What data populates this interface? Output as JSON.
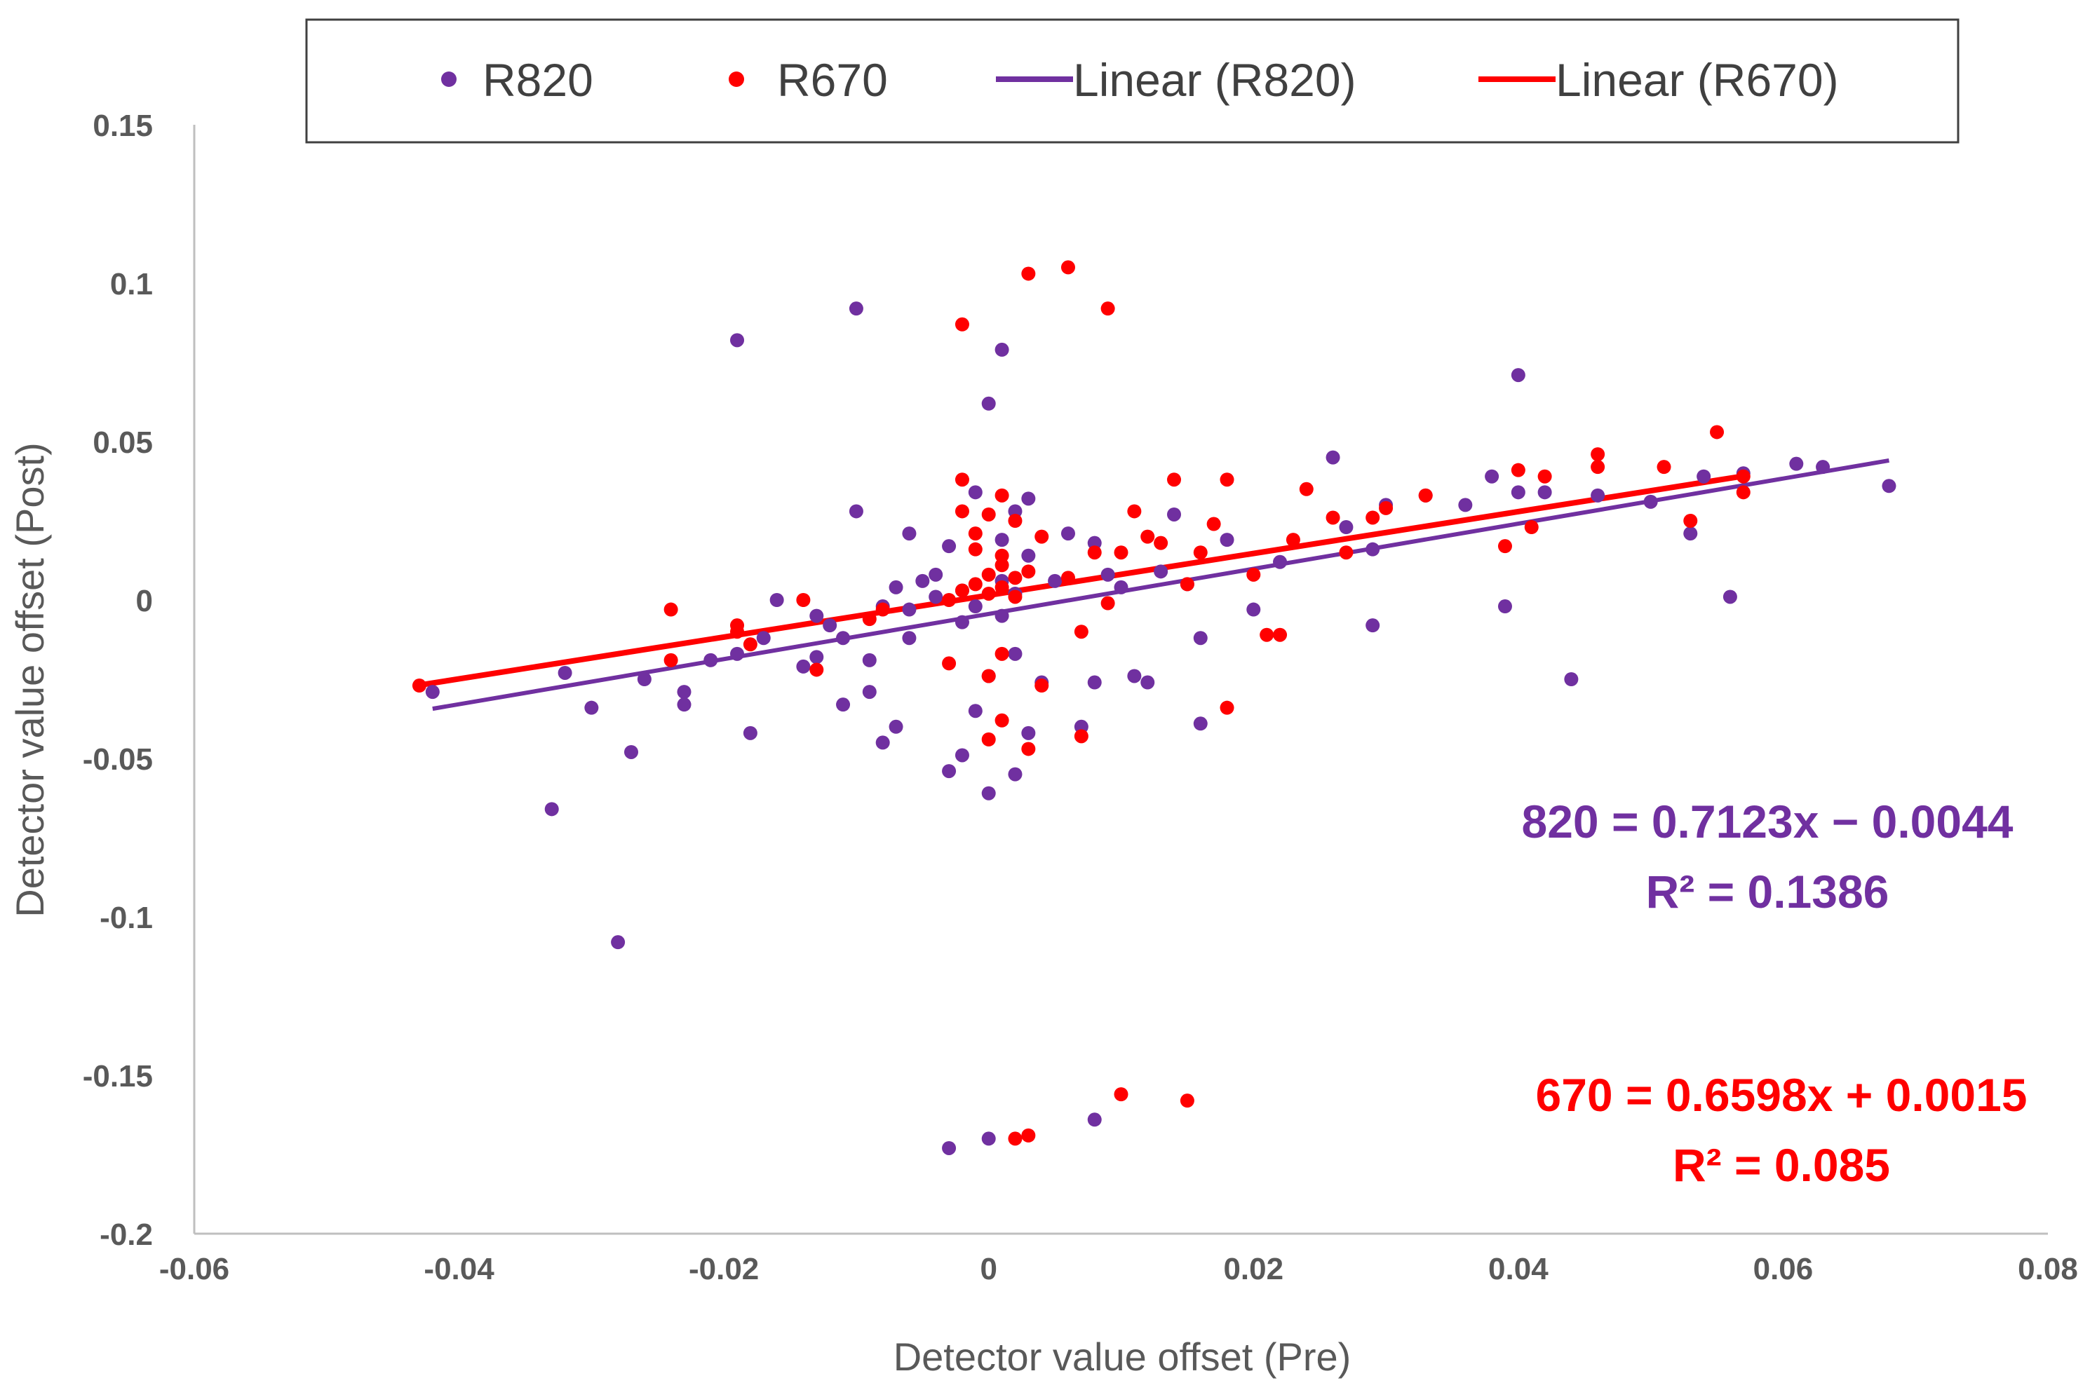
{
  "chart_data": {
    "type": "scatter",
    "title": "",
    "xlabel": "Detector value offset (Pre)",
    "ylabel": "Detector value offset (Post)",
    "xlim": [
      -0.06,
      0.08
    ],
    "ylim": [
      -0.2,
      0.15
    ],
    "x_ticks": [
      -0.06,
      -0.04,
      -0.02,
      0,
      0.02,
      0.04,
      0.06,
      0.08
    ],
    "x_tick_labels": [
      "-0.06",
      "-0.04",
      "-0.02",
      "0",
      "0.02",
      "0.04",
      "0.06",
      "0.08"
    ],
    "y_ticks": [
      0.15,
      0.1,
      0.05,
      0,
      -0.05,
      -0.1,
      -0.15,
      -0.2
    ],
    "y_tick_labels": [
      "0.15",
      "0.1",
      "0.05",
      "0",
      "-0.05",
      "-0.1",
      "-0.15",
      "-0.2"
    ],
    "legend_position": "top",
    "legend": [
      {
        "label": "R820",
        "kind": "marker",
        "color": "#7030A0"
      },
      {
        "label": "R670",
        "kind": "marker",
        "color": "#FF0000"
      },
      {
        "label": "Linear (R820)",
        "kind": "line",
        "color": "#7030A0"
      },
      {
        "label": "Linear (R670)",
        "kind": "line",
        "color": "#FF0000"
      }
    ],
    "series": [
      {
        "name": "R820",
        "color": "#7030A0",
        "points": [
          [
            -0.042,
            -0.029
          ],
          [
            -0.033,
            -0.066
          ],
          [
            -0.032,
            -0.023
          ],
          [
            -0.03,
            -0.034
          ],
          [
            -0.028,
            -0.108
          ],
          [
            -0.027,
            -0.048
          ],
          [
            -0.026,
            -0.025
          ],
          [
            -0.023,
            -0.029
          ],
          [
            -0.023,
            -0.033
          ],
          [
            -0.021,
            -0.019
          ],
          [
            -0.019,
            -0.017
          ],
          [
            -0.019,
            0.082
          ],
          [
            -0.018,
            -0.042
          ],
          [
            -0.017,
            -0.012
          ],
          [
            -0.016,
            0.0
          ],
          [
            -0.014,
            -0.021
          ],
          [
            -0.013,
            -0.018
          ],
          [
            -0.012,
            -0.008
          ],
          [
            -0.011,
            -0.033
          ],
          [
            -0.01,
            0.092
          ],
          [
            -0.01,
            0.028
          ],
          [
            -0.009,
            -0.019
          ],
          [
            -0.009,
            -0.029
          ],
          [
            -0.008,
            -0.045
          ],
          [
            -0.007,
            -0.04
          ],
          [
            -0.006,
            0.021
          ],
          [
            -0.006,
            -0.012
          ],
          [
            -0.005,
            0.006
          ],
          [
            -0.004,
            0.008
          ],
          [
            -0.003,
            -0.054
          ],
          [
            -0.003,
            0.017
          ],
          [
            -0.002,
            -0.049
          ],
          [
            -0.002,
            0.003
          ],
          [
            -0.001,
            -0.035
          ],
          [
            -0.001,
            0.034
          ],
          [
            0.0,
            -0.061
          ],
          [
            0.0,
            0.062
          ],
          [
            0.0,
            -0.024
          ],
          [
            0.001,
            0.079
          ],
          [
            0.001,
            -0.005
          ],
          [
            0.001,
            0.019
          ],
          [
            0.002,
            -0.055
          ],
          [
            0.002,
            0.028
          ],
          [
            0.002,
            -0.017
          ],
          [
            0.003,
            -0.042
          ],
          [
            0.003,
            0.032
          ],
          [
            0.003,
            0.014
          ],
          [
            0.004,
            -0.026
          ],
          [
            0.005,
            0.006
          ],
          [
            0.006,
            0.021
          ],
          [
            0.007,
            -0.04
          ],
          [
            0.008,
            -0.026
          ],
          [
            0.008,
            0.018
          ],
          [
            0.009,
            0.008
          ],
          [
            0.01,
            0.004
          ],
          [
            0.011,
            -0.024
          ],
          [
            0.012,
            -0.026
          ],
          [
            0.013,
            0.009
          ],
          [
            0.014,
            0.027
          ],
          [
            0.015,
            0.005
          ],
          [
            0.016,
            -0.012
          ],
          [
            0.016,
            -0.039
          ],
          [
            0.018,
            0.019
          ],
          [
            0.02,
            -0.003
          ],
          [
            0.022,
            0.012
          ],
          [
            0.026,
            0.045
          ],
          [
            0.027,
            0.023
          ],
          [
            0.029,
            -0.008
          ],
          [
            0.029,
            0.016
          ],
          [
            0.03,
            0.03
          ],
          [
            0.033,
            0.033
          ],
          [
            0.036,
            0.03
          ],
          [
            0.038,
            0.039
          ],
          [
            0.039,
            -0.002
          ],
          [
            0.04,
            0.071
          ],
          [
            0.04,
            0.034
          ],
          [
            0.042,
            0.034
          ],
          [
            0.044,
            -0.025
          ],
          [
            0.046,
            0.033
          ],
          [
            0.05,
            0.031
          ],
          [
            0.053,
            0.021
          ],
          [
            0.054,
            0.039
          ],
          [
            0.056,
            0.001
          ],
          [
            0.057,
            0.04
          ],
          [
            0.061,
            0.043
          ],
          [
            0.063,
            0.042
          ],
          [
            0.068,
            0.036
          ],
          [
            -0.003,
            -0.173
          ],
          [
            0.0,
            -0.17
          ],
          [
            0.008,
            -0.164
          ],
          [
            -0.013,
            -0.005
          ],
          [
            -0.011,
            -0.012
          ],
          [
            -0.008,
            -0.002
          ],
          [
            -0.007,
            0.004
          ],
          [
            -0.006,
            -0.003
          ],
          [
            -0.004,
            0.001
          ],
          [
            -0.002,
            -0.007
          ],
          [
            -0.001,
            -0.002
          ],
          [
            0.001,
            0.006
          ],
          [
            0.002,
            0.002
          ]
        ]
      },
      {
        "name": "R670",
        "color": "#FF0000",
        "points": [
          [
            -0.043,
            -0.027
          ],
          [
            -0.024,
            -0.003
          ],
          [
            -0.024,
            -0.019
          ],
          [
            -0.019,
            -0.008
          ],
          [
            -0.019,
            -0.01
          ],
          [
            -0.018,
            -0.014
          ],
          [
            -0.014,
            0.0
          ],
          [
            -0.013,
            -0.022
          ],
          [
            -0.009,
            -0.006
          ],
          [
            -0.008,
            -0.003
          ],
          [
            -0.003,
            -0.02
          ],
          [
            -0.002,
            0.087
          ],
          [
            -0.002,
            0.038
          ],
          [
            -0.002,
            0.028
          ],
          [
            -0.001,
            0.016
          ],
          [
            -0.001,
            0.021
          ],
          [
            0.0,
            -0.044
          ],
          [
            0.0,
            -0.024
          ],
          [
            0.0,
            0.027
          ],
          [
            0.001,
            -0.038
          ],
          [
            0.001,
            0.033
          ],
          [
            0.001,
            -0.017
          ],
          [
            0.002,
            0.025
          ],
          [
            0.002,
            -0.17
          ],
          [
            0.003,
            0.103
          ],
          [
            0.003,
            -0.169
          ],
          [
            0.003,
            -0.047
          ],
          [
            0.004,
            -0.027
          ],
          [
            0.004,
            0.02
          ],
          [
            0.006,
            0.105
          ],
          [
            0.006,
            0.007
          ],
          [
            0.007,
            -0.043
          ],
          [
            0.007,
            -0.01
          ],
          [
            0.008,
            0.015
          ],
          [
            0.009,
            0.092
          ],
          [
            0.009,
            -0.001
          ],
          [
            0.01,
            -0.156
          ],
          [
            0.01,
            0.015
          ],
          [
            0.011,
            0.028
          ],
          [
            0.012,
            0.02
          ],
          [
            0.013,
            0.018
          ],
          [
            0.014,
            0.038
          ],
          [
            0.015,
            -0.158
          ],
          [
            0.015,
            0.005
          ],
          [
            0.016,
            0.015
          ],
          [
            0.017,
            0.024
          ],
          [
            0.018,
            -0.034
          ],
          [
            0.018,
            0.038
          ],
          [
            0.02,
            0.008
          ],
          [
            0.021,
            -0.011
          ],
          [
            0.022,
            -0.011
          ],
          [
            0.023,
            0.019
          ],
          [
            0.024,
            0.035
          ],
          [
            0.026,
            0.026
          ],
          [
            0.027,
            0.015
          ],
          [
            0.029,
            0.026
          ],
          [
            0.03,
            0.029
          ],
          [
            0.033,
            0.033
          ],
          [
            0.039,
            0.017
          ],
          [
            0.04,
            0.041
          ],
          [
            0.041,
            0.023
          ],
          [
            0.042,
            0.039
          ],
          [
            0.046,
            0.042
          ],
          [
            0.046,
            0.046
          ],
          [
            0.051,
            0.042
          ],
          [
            0.053,
            0.025
          ],
          [
            0.055,
            0.053
          ],
          [
            0.057,
            0.034
          ],
          [
            0.057,
            0.039
          ],
          [
            -0.001,
            0.005
          ],
          [
            0.0,
            0.008
          ],
          [
            0.0,
            0.002
          ],
          [
            0.001,
            0.011
          ],
          [
            0.001,
            0.004
          ],
          [
            0.002,
            0.007
          ],
          [
            0.002,
            0.001
          ],
          [
            -0.002,
            0.003
          ],
          [
            -0.003,
            0.0
          ],
          [
            0.003,
            0.009
          ],
          [
            0.001,
            0.014
          ]
        ]
      }
    ],
    "trendlines": [
      {
        "name": "Linear (R820)",
        "color": "#7030A0",
        "slope": 0.7123,
        "intercept": -0.0044,
        "x_range": [
          -0.042,
          0.068
        ],
        "equation": "820 = 0.7123x − 0.0044",
        "r2": "R² = 0.1386"
      },
      {
        "name": "Linear (R670)",
        "color": "#FF0000",
        "slope": 0.6598,
        "intercept": 0.0015,
        "x_range": [
          -0.043,
          0.057
        ],
        "equation": "670 = 0.6598x + 0.0015",
        "r2": "R² = 0.085"
      }
    ]
  }
}
